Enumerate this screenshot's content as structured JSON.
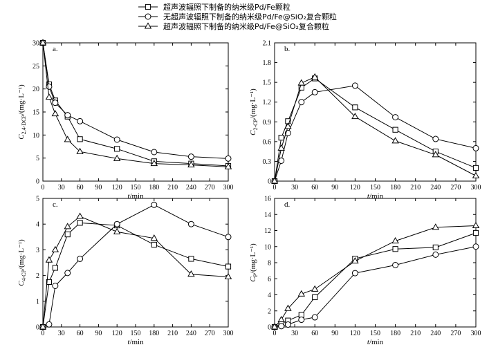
{
  "chart_data": {
    "legend": {
      "placement": "top-center",
      "entries": [
        {
          "marker": "square",
          "label": "超声波辐照下制备的纳米级Pd/Fe颗粒"
        },
        {
          "marker": "circle",
          "label": "无超声波辐照下制备的纳米级Pd/Fe@SiO₂复合颗粒"
        },
        {
          "marker": "triangle",
          "label": "超声波辐照下制备的纳米级Pd/Fe@SiO₂复合颗粒"
        }
      ]
    },
    "panels": [
      {
        "id": "a",
        "letter": "a.",
        "type": "line",
        "xlabel": "t/min",
        "ylabel": "C2,4-DCP/(mg·L⁻¹)",
        "xlim": [
          0,
          300
        ],
        "ylim": [
          0,
          30
        ],
        "xticks": [
          0,
          30,
          60,
          90,
          120,
          150,
          180,
          210,
          240,
          270,
          300
        ],
        "yticks": [
          0,
          5,
          10,
          15,
          20,
          25,
          30
        ],
        "series": [
          {
            "marker": "square",
            "x": [
              0,
              10,
              20,
              40,
              60,
              120,
              180,
              240,
              300
            ],
            "y": [
              30,
              21,
              17.5,
              14,
              9.1,
              7.0,
              4.3,
              3.8,
              3.3
            ]
          },
          {
            "marker": "circle",
            "x": [
              0,
              10,
              20,
              40,
              60,
              120,
              180,
              240,
              300
            ],
            "y": [
              30,
              20.5,
              17,
              14.3,
              13,
              9,
              6.3,
              5.3,
              4.9
            ]
          },
          {
            "marker": "triangle",
            "x": [
              0,
              10,
              20,
              40,
              60,
              120,
              180,
              240,
              300
            ],
            "y": [
              30,
              18.2,
              14.6,
              9.0,
              6.4,
              4.9,
              3.8,
              3.5,
              3.1
            ]
          }
        ]
      },
      {
        "id": "b",
        "letter": "b.",
        "type": "line",
        "xlabel": "t/min",
        "ylabel": "C2-CP/(mg·L⁻¹)",
        "xlim": [
          0,
          300
        ],
        "ylim": [
          0,
          2.1
        ],
        "xticks": [
          0,
          30,
          60,
          90,
          120,
          150,
          180,
          210,
          240,
          270,
          300
        ],
        "yticks": [
          0,
          0.3,
          0.6,
          0.9,
          1.2,
          1.5,
          1.8,
          2.1
        ],
        "series": [
          {
            "marker": "square",
            "x": [
              0,
              10,
              20,
              40,
              60,
              120,
              180,
              240,
              300
            ],
            "y": [
              0,
              0.66,
              0.91,
              1.42,
              1.56,
              1.12,
              0.78,
              0.45,
              0.2
            ]
          },
          {
            "marker": "circle",
            "x": [
              0,
              10,
              20,
              40,
              60,
              120,
              180,
              240,
              300
            ],
            "y": [
              0,
              0.31,
              0.73,
              1.2,
              1.35,
              1.45,
              0.97,
              0.64,
              0.5
            ]
          },
          {
            "marker": "triangle",
            "x": [
              0,
              10,
              20,
              40,
              60,
              120,
              180,
              240,
              300
            ],
            "y": [
              0,
              0.5,
              0.83,
              1.49,
              1.58,
              0.98,
              0.61,
              0.4,
              0.08
            ]
          }
        ]
      },
      {
        "id": "c",
        "letter": "c.",
        "type": "line",
        "xlabel": "t/min",
        "ylabel": "C4-CP/(mg·L⁻¹)",
        "xlim": [
          0,
          300
        ],
        "ylim": [
          0,
          5
        ],
        "xticks": [
          0,
          30,
          60,
          90,
          120,
          150,
          180,
          210,
          240,
          270,
          300
        ],
        "yticks": [
          0,
          1,
          2,
          3,
          4,
          5
        ],
        "series": [
          {
            "marker": "square",
            "x": [
              0,
              10,
              20,
              40,
              60,
              120,
              180,
              240,
              300
            ],
            "y": [
              0,
              1.75,
              2.3,
              3.6,
              4.05,
              3.95,
              3.2,
              2.65,
              2.35
            ]
          },
          {
            "marker": "circle",
            "x": [
              0,
              10,
              20,
              40,
              60,
              120,
              180,
              240,
              300
            ],
            "y": [
              0,
              0.1,
              1.6,
              2.1,
              2.65,
              4.0,
              4.75,
              4.0,
              3.5
            ]
          },
          {
            "marker": "triangle",
            "x": [
              0,
              10,
              20,
              40,
              60,
              120,
              180,
              240,
              300
            ],
            "y": [
              0,
              2.6,
              3.0,
              3.9,
              4.3,
              3.7,
              3.45,
              2.05,
              1.95
            ]
          }
        ]
      },
      {
        "id": "d",
        "letter": "d.",
        "type": "line",
        "xlabel": "t/min",
        "ylabel": "CP/(mg·L⁻¹)",
        "xlim": [
          0,
          300
        ],
        "ylim": [
          0,
          16
        ],
        "xticks": [
          0,
          30,
          60,
          90,
          120,
          150,
          180,
          210,
          240,
          270,
          300
        ],
        "yticks": [
          0,
          2,
          4,
          6,
          8,
          10,
          12,
          14,
          16
        ],
        "series": [
          {
            "marker": "square",
            "x": [
              0,
              10,
              20,
              40,
              60,
              120,
              180,
              240,
              300
            ],
            "y": [
              0,
              0.4,
              0.8,
              1.5,
              3.7,
              8.5,
              9.7,
              9.9,
              11.7
            ]
          },
          {
            "marker": "circle",
            "x": [
              0,
              10,
              20,
              40,
              60,
              120,
              180,
              240,
              300
            ],
            "y": [
              0,
              0.1,
              0.3,
              0.9,
              1.2,
              6.7,
              7.7,
              9.0,
              10.0
            ]
          },
          {
            "marker": "triangle",
            "x": [
              0,
              10,
              20,
              40,
              60,
              120,
              180,
              240,
              300
            ],
            "y": [
              0,
              0.9,
              2.3,
              4.1,
              4.7,
              8.2,
              10.7,
              12.4,
              12.6
            ]
          }
        ]
      }
    ]
  }
}
